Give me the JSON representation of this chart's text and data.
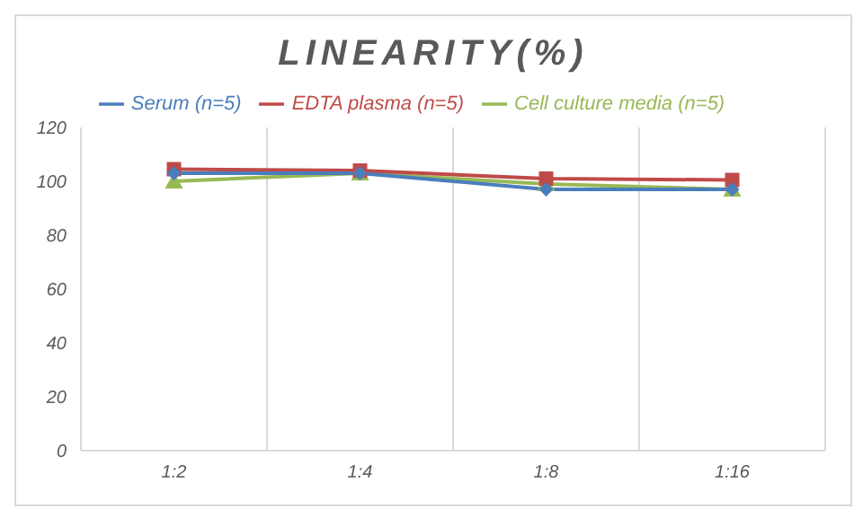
{
  "chart_data": {
    "type": "line",
    "title": "LINEARITY(%)",
    "categories": [
      "1:2",
      "1:4",
      "1:8",
      "1:16"
    ],
    "series": [
      {
        "name": "Serum (n=5)",
        "color": "#4a7ebb",
        "marker": "diamond",
        "values": [
          103,
          103,
          97,
          97
        ]
      },
      {
        "name": "EDTA plasma (n=5)",
        "color": "#be4b48",
        "marker": "square",
        "values": [
          104.5,
          104,
          101,
          100.5
        ]
      },
      {
        "name": "Cell culture media (n=5)",
        "color": "#98b954",
        "marker": "triangle",
        "values": [
          100,
          103,
          99,
          97
        ]
      }
    ],
    "ylim": [
      0,
      120
    ],
    "yticks": [
      0,
      20,
      40,
      60,
      80,
      100,
      120
    ],
    "grid": "x",
    "legend": "top"
  }
}
